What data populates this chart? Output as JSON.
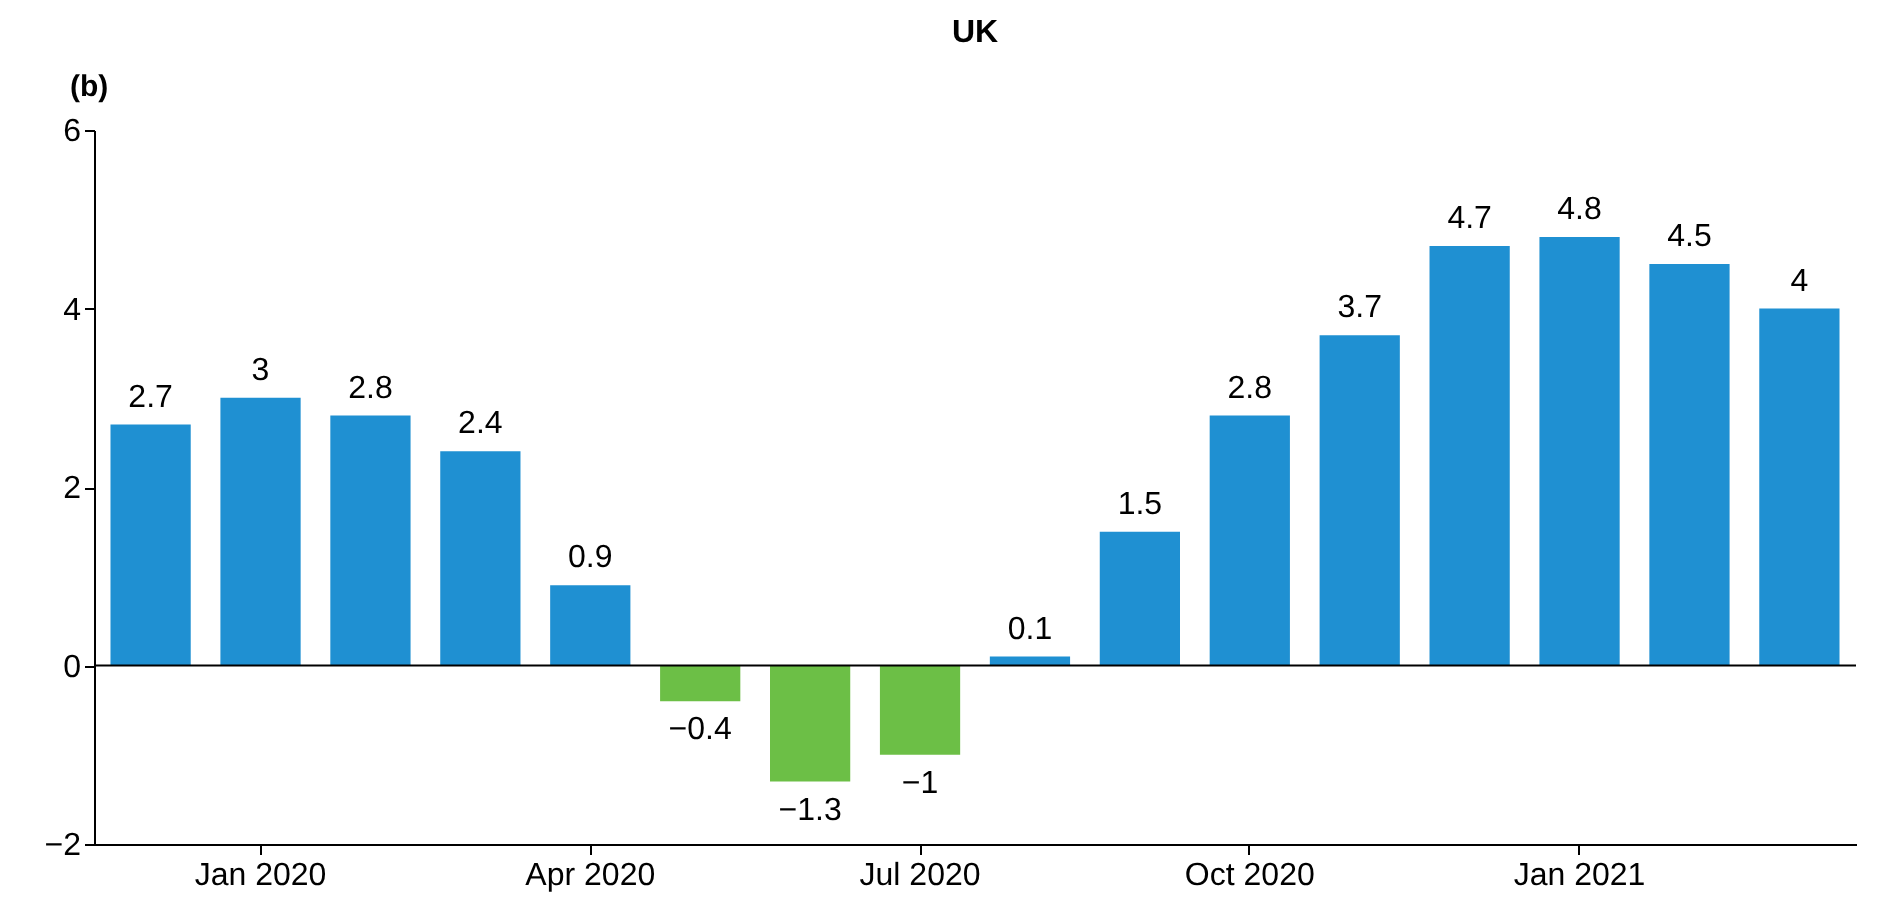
{
  "chart_data": {
    "type": "bar",
    "title": "UK",
    "annotations": [
      "(b)"
    ],
    "categories": [
      null,
      "Jan 2020",
      null,
      null,
      "Apr 2020",
      null,
      null,
      "Jul 2020",
      null,
      null,
      "Oct 2020",
      null,
      null,
      "Jan 2021",
      null,
      null
    ],
    "values": [
      2.7,
      3,
      2.8,
      2.4,
      0.9,
      -0.4,
      -1.3,
      -1,
      0.1,
      1.5,
      2.8,
      3.7,
      4.7,
      4.8,
      4.5,
      4
    ],
    "value_labels": [
      "2.7",
      "3",
      "2.8",
      "2.4",
      "0.9",
      "−0.4",
      "−1.3",
      "−1",
      "0.1",
      "1.5",
      "2.8",
      "3.7",
      "4.7",
      "4.8",
      "4.5",
      "4"
    ],
    "colors": [
      "#1f90d2",
      "#1f90d2",
      "#1f90d2",
      "#1f90d2",
      "#1f90d2",
      "#6cbf46",
      "#6cbf46",
      "#6cbf46",
      "#1f90d2",
      "#1f90d2",
      "#1f90d2",
      "#1f90d2",
      "#1f90d2",
      "#1f90d2",
      "#1f90d2",
      "#1f90d2"
    ],
    "ref_lines": [
      {
        "axis": "y",
        "value": 0,
        "color": "#000000"
      }
    ],
    "ylim": [
      -2,
      6
    ],
    "yticks": [
      -2,
      0,
      2,
      4,
      6
    ],
    "grid": false
  }
}
